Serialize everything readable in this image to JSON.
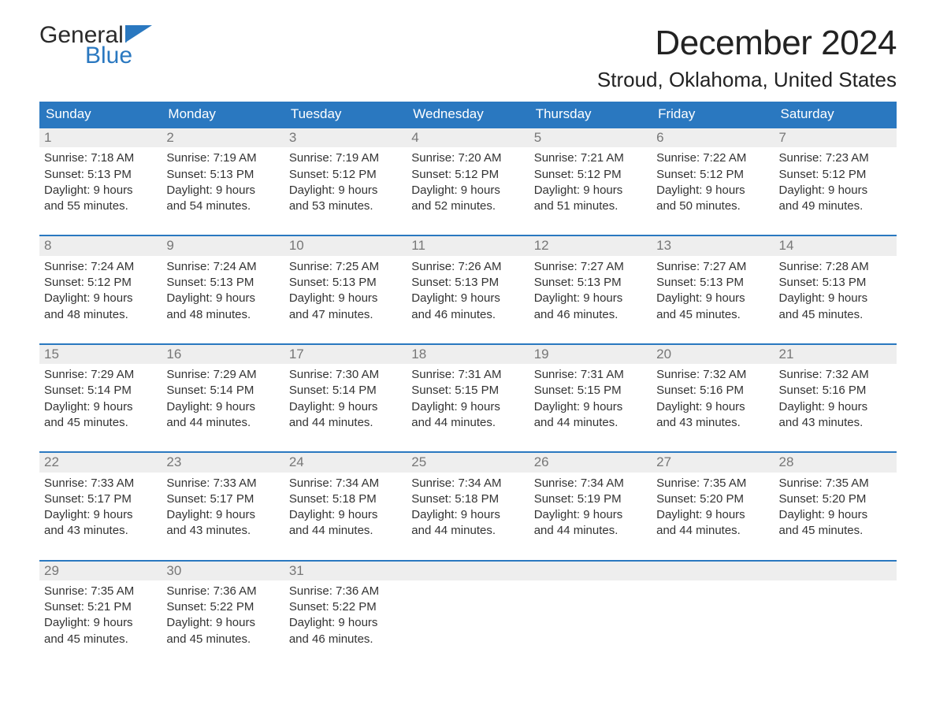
{
  "logo": {
    "general": "General",
    "blue": "Blue",
    "flag_color": "#2a78c0"
  },
  "title": "December 2024",
  "location": "Stroud, Oklahoma, United States",
  "colors": {
    "header_bg": "#2a78c0",
    "header_text": "#ffffff",
    "daynum_bg": "#eeeeee",
    "daynum_text": "#777777",
    "week_border": "#2a78c0",
    "body_text": "#333333"
  },
  "weekdays": [
    "Sunday",
    "Monday",
    "Tuesday",
    "Wednesday",
    "Thursday",
    "Friday",
    "Saturday"
  ],
  "weeks": [
    [
      {
        "n": "1",
        "sunrise": "Sunrise: 7:18 AM",
        "sunset": "Sunset: 5:13 PM",
        "d1": "Daylight: 9 hours",
        "d2": "and 55 minutes."
      },
      {
        "n": "2",
        "sunrise": "Sunrise: 7:19 AM",
        "sunset": "Sunset: 5:13 PM",
        "d1": "Daylight: 9 hours",
        "d2": "and 54 minutes."
      },
      {
        "n": "3",
        "sunrise": "Sunrise: 7:19 AM",
        "sunset": "Sunset: 5:12 PM",
        "d1": "Daylight: 9 hours",
        "d2": "and 53 minutes."
      },
      {
        "n": "4",
        "sunrise": "Sunrise: 7:20 AM",
        "sunset": "Sunset: 5:12 PM",
        "d1": "Daylight: 9 hours",
        "d2": "and 52 minutes."
      },
      {
        "n": "5",
        "sunrise": "Sunrise: 7:21 AM",
        "sunset": "Sunset: 5:12 PM",
        "d1": "Daylight: 9 hours",
        "d2": "and 51 minutes."
      },
      {
        "n": "6",
        "sunrise": "Sunrise: 7:22 AM",
        "sunset": "Sunset: 5:12 PM",
        "d1": "Daylight: 9 hours",
        "d2": "and 50 minutes."
      },
      {
        "n": "7",
        "sunrise": "Sunrise: 7:23 AM",
        "sunset": "Sunset: 5:12 PM",
        "d1": "Daylight: 9 hours",
        "d2": "and 49 minutes."
      }
    ],
    [
      {
        "n": "8",
        "sunrise": "Sunrise: 7:24 AM",
        "sunset": "Sunset: 5:12 PM",
        "d1": "Daylight: 9 hours",
        "d2": "and 48 minutes."
      },
      {
        "n": "9",
        "sunrise": "Sunrise: 7:24 AM",
        "sunset": "Sunset: 5:13 PM",
        "d1": "Daylight: 9 hours",
        "d2": "and 48 minutes."
      },
      {
        "n": "10",
        "sunrise": "Sunrise: 7:25 AM",
        "sunset": "Sunset: 5:13 PM",
        "d1": "Daylight: 9 hours",
        "d2": "and 47 minutes."
      },
      {
        "n": "11",
        "sunrise": "Sunrise: 7:26 AM",
        "sunset": "Sunset: 5:13 PM",
        "d1": "Daylight: 9 hours",
        "d2": "and 46 minutes."
      },
      {
        "n": "12",
        "sunrise": "Sunrise: 7:27 AM",
        "sunset": "Sunset: 5:13 PM",
        "d1": "Daylight: 9 hours",
        "d2": "and 46 minutes."
      },
      {
        "n": "13",
        "sunrise": "Sunrise: 7:27 AM",
        "sunset": "Sunset: 5:13 PM",
        "d1": "Daylight: 9 hours",
        "d2": "and 45 minutes."
      },
      {
        "n": "14",
        "sunrise": "Sunrise: 7:28 AM",
        "sunset": "Sunset: 5:13 PM",
        "d1": "Daylight: 9 hours",
        "d2": "and 45 minutes."
      }
    ],
    [
      {
        "n": "15",
        "sunrise": "Sunrise: 7:29 AM",
        "sunset": "Sunset: 5:14 PM",
        "d1": "Daylight: 9 hours",
        "d2": "and 45 minutes."
      },
      {
        "n": "16",
        "sunrise": "Sunrise: 7:29 AM",
        "sunset": "Sunset: 5:14 PM",
        "d1": "Daylight: 9 hours",
        "d2": "and 44 minutes."
      },
      {
        "n": "17",
        "sunrise": "Sunrise: 7:30 AM",
        "sunset": "Sunset: 5:14 PM",
        "d1": "Daylight: 9 hours",
        "d2": "and 44 minutes."
      },
      {
        "n": "18",
        "sunrise": "Sunrise: 7:31 AM",
        "sunset": "Sunset: 5:15 PM",
        "d1": "Daylight: 9 hours",
        "d2": "and 44 minutes."
      },
      {
        "n": "19",
        "sunrise": "Sunrise: 7:31 AM",
        "sunset": "Sunset: 5:15 PM",
        "d1": "Daylight: 9 hours",
        "d2": "and 44 minutes."
      },
      {
        "n": "20",
        "sunrise": "Sunrise: 7:32 AM",
        "sunset": "Sunset: 5:16 PM",
        "d1": "Daylight: 9 hours",
        "d2": "and 43 minutes."
      },
      {
        "n": "21",
        "sunrise": "Sunrise: 7:32 AM",
        "sunset": "Sunset: 5:16 PM",
        "d1": "Daylight: 9 hours",
        "d2": "and 43 minutes."
      }
    ],
    [
      {
        "n": "22",
        "sunrise": "Sunrise: 7:33 AM",
        "sunset": "Sunset: 5:17 PM",
        "d1": "Daylight: 9 hours",
        "d2": "and 43 minutes."
      },
      {
        "n": "23",
        "sunrise": "Sunrise: 7:33 AM",
        "sunset": "Sunset: 5:17 PM",
        "d1": "Daylight: 9 hours",
        "d2": "and 43 minutes."
      },
      {
        "n": "24",
        "sunrise": "Sunrise: 7:34 AM",
        "sunset": "Sunset: 5:18 PM",
        "d1": "Daylight: 9 hours",
        "d2": "and 44 minutes."
      },
      {
        "n": "25",
        "sunrise": "Sunrise: 7:34 AM",
        "sunset": "Sunset: 5:18 PM",
        "d1": "Daylight: 9 hours",
        "d2": "and 44 minutes."
      },
      {
        "n": "26",
        "sunrise": "Sunrise: 7:34 AM",
        "sunset": "Sunset: 5:19 PM",
        "d1": "Daylight: 9 hours",
        "d2": "and 44 minutes."
      },
      {
        "n": "27",
        "sunrise": "Sunrise: 7:35 AM",
        "sunset": "Sunset: 5:20 PM",
        "d1": "Daylight: 9 hours",
        "d2": "and 44 minutes."
      },
      {
        "n": "28",
        "sunrise": "Sunrise: 7:35 AM",
        "sunset": "Sunset: 5:20 PM",
        "d1": "Daylight: 9 hours",
        "d2": "and 45 minutes."
      }
    ],
    [
      {
        "n": "29",
        "sunrise": "Sunrise: 7:35 AM",
        "sunset": "Sunset: 5:21 PM",
        "d1": "Daylight: 9 hours",
        "d2": "and 45 minutes."
      },
      {
        "n": "30",
        "sunrise": "Sunrise: 7:36 AM",
        "sunset": "Sunset: 5:22 PM",
        "d1": "Daylight: 9 hours",
        "d2": "and 45 minutes."
      },
      {
        "n": "31",
        "sunrise": "Sunrise: 7:36 AM",
        "sunset": "Sunset: 5:22 PM",
        "d1": "Daylight: 9 hours",
        "d2": "and 46 minutes."
      },
      {
        "empty": true
      },
      {
        "empty": true
      },
      {
        "empty": true
      },
      {
        "empty": true
      }
    ]
  ]
}
